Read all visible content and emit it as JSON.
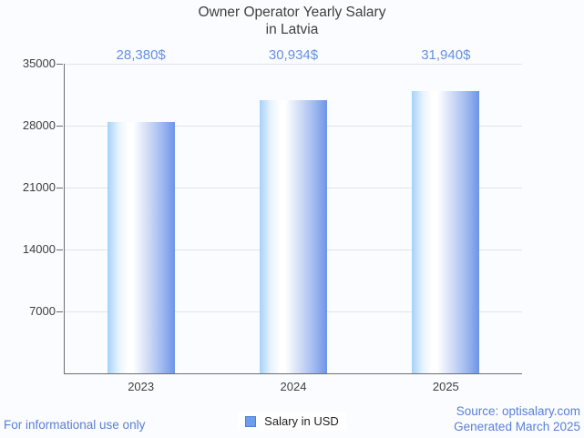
{
  "chart_data": {
    "type": "bar",
    "title": "Owner Operator Yearly Salary\nin Latvia",
    "categories": [
      "2023",
      "2024",
      "2025"
    ],
    "series": [
      {
        "name": "Salary in USD",
        "values": [
          28380,
          30934,
          31940
        ]
      }
    ],
    "value_labels": [
      "28,380$",
      "30,934$",
      "31,940$"
    ],
    "xlabel": "",
    "ylabel": "",
    "ylim": [
      0,
      35000
    ],
    "yticks": [
      7000,
      14000,
      21000,
      28000,
      35000
    ],
    "grid": true,
    "legend_position": "bottom"
  },
  "legend": {
    "label": "Salary in USD"
  },
  "footer": {
    "left_note": "For informational use only",
    "source_line1": "Source: optisalary.com",
    "source_line2": "Generated March 2025"
  },
  "colors": {
    "background": "#fafcff",
    "title_text": "#404040",
    "axis_label_text": "#3f3f3f",
    "value_label_text": "#6490e2",
    "footer_text": "#5b7fd6",
    "gridline": "#e4e4e4",
    "axis_line": "#6e6e6e",
    "bar_gradient_left": "#a4d2f8",
    "bar_gradient_mid": "#ffffff",
    "bar_gradient_right": "#6d94e8",
    "legend_swatch_fill": "#6d9eeb",
    "legend_swatch_border": "#4d7fd0"
  }
}
